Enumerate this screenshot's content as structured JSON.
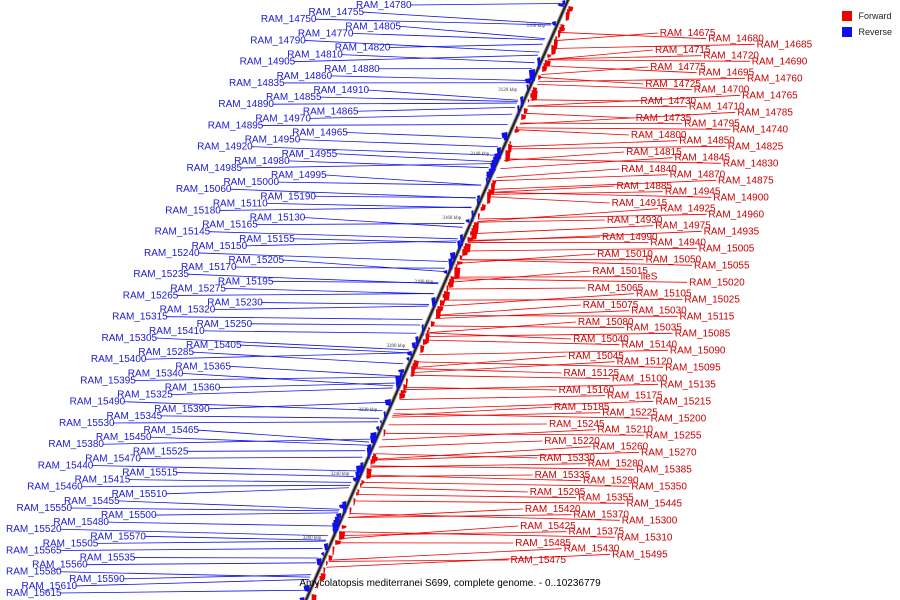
{
  "legend": [
    {
      "label": "Forward",
      "color": "#ee0000"
    },
    {
      "label": "Reverse",
      "color": "#1010ee"
    }
  ],
  "caption": "Amycolatopsis mediterranei S699, complete genome. - 0..10236779",
  "ticks": [
    "3100 kbp",
    "3120 kbp",
    "3140 kbp",
    "3160 kbp",
    "3180 kbp",
    "3200 kbp",
    "3220 kbp",
    "3240 kbp",
    "3260 kbp"
  ],
  "reverse_genes": [
    "RAM_14780",
    "RAM_14755",
    "RAM_14750",
    "RAM_14805",
    "RAM_14770",
    "RAM_14790",
    "RAM_14820",
    "RAM_14810",
    "RAM_14905",
    "RAM_14880",
    "RAM_14860",
    "RAM_14835",
    "RAM_14910",
    "RAM_14855",
    "RAM_14890",
    "RAM_14865",
    "RAM_14970",
    "RAM_14895",
    "RAM_14965",
    "RAM_14950",
    "RAM_14920",
    "RAM_14955",
    "RAM_14980",
    "RAM_14985",
    "RAM_14995",
    "RAM_15000",
    "RAM_15060",
    "RAM_15190",
    "RAM_15110",
    "RAM_15180",
    "RAM_15130",
    "RAM_15165",
    "RAM_15145",
    "RAM_15155",
    "RAM_15150",
    "RAM_15240",
    "RAM_15205",
    "RAM_15170",
    "RAM_15235",
    "RAM_15195",
    "RAM_15275",
    "RAM_15265",
    "RAM_15230",
    "RAM_15320",
    "RAM_15315",
    "RAM_15250",
    "RAM_15410",
    "RAM_15305",
    "RAM_15405",
    "RAM_15285",
    "RAM_15400",
    "RAM_15365",
    "RAM_15340",
    "RAM_15395",
    "RAM_15360",
    "RAM_15325",
    "RAM_15490",
    "RAM_15390",
    "RAM_15345",
    "RAM_15530",
    "RAM_15465",
    "RAM_15450",
    "RAM_15380",
    "RAM_15525",
    "RAM_15470",
    "RAM_15440",
    "RAM_15515",
    "RAM_15415",
    "RAM_15460",
    "RAM_15510",
    "RAM_15455",
    "RAM_15550",
    "RAM_15500",
    "RAM_15480",
    "RAM_15520",
    "RAM_15570",
    "RAM_15505",
    "RAM_15565",
    "RAM_15535",
    "RAM_15560",
    "RAM_15580",
    "RAM_15590",
    "RAM_15610",
    "RAM_15615"
  ],
  "forward_genes": [
    "RAM_14675",
    "RAM_14680",
    "RAM_14685",
    "RAM_14715",
    "RAM_14720",
    "RAM_14690",
    "RAM_14775",
    "RAM_14695",
    "RAM_14760",
    "RAM_14725",
    "RAM_14700",
    "RAM_14765",
    "RAM_14730",
    "RAM_14710",
    "RAM_14785",
    "RAM_14735",
    "RAM_14795",
    "RAM_14740",
    "RAM_14800",
    "RAM_14850",
    "RAM_14825",
    "RAM_14815",
    "RAM_14845",
    "RAM_14830",
    "RAM_14840",
    "RAM_14870",
    "RAM_14875",
    "RAM_14885",
    "RAM_14945",
    "RAM_14900",
    "RAM_14915",
    "RAM_14925",
    "RAM_14960",
    "RAM_14930",
    "RAM_14975",
    "RAM_14935",
    "RAM_14990",
    "RAM_14940",
    "RAM_15005",
    "RAM_15010",
    "RAM_15050",
    "RAM_15055",
    "RAM_15015",
    "ileS",
    "RAM_15020",
    "RAM_15065",
    "RAM_15105",
    "RAM_15025",
    "RAM_15075",
    "RAM_15030",
    "RAM_15115",
    "RAM_15080",
    "RAM_15035",
    "RAM_15085",
    "RAM_15040",
    "RAM_15140",
    "RAM_15090",
    "RAM_15045",
    "RAM_15120",
    "RAM_15095",
    "RAM_15125",
    "RAM_15100",
    "RAM_15135",
    "RAM_15160",
    "RAM_15175",
    "RAM_15215",
    "RAM_15185",
    "RAM_15225",
    "RAM_15200",
    "RAM_15245",
    "RAM_15210",
    "RAM_15255",
    "RAM_15220",
    "RAM_15260",
    "RAM_15270",
    "RAM_15330",
    "RAM_15280",
    "RAM_15385",
    "RAM_15335",
    "RAM_15290",
    "RAM_15350",
    "RAM_15295",
    "RAM_15355",
    "RAM_15445",
    "RAM_15420",
    "RAM_15370",
    "RAM_15300",
    "RAM_15425",
    "RAM_15375",
    "RAM_15310",
    "RAM_15485",
    "RAM_15430",
    "RAM_15495",
    "RAM_15475"
  ]
}
